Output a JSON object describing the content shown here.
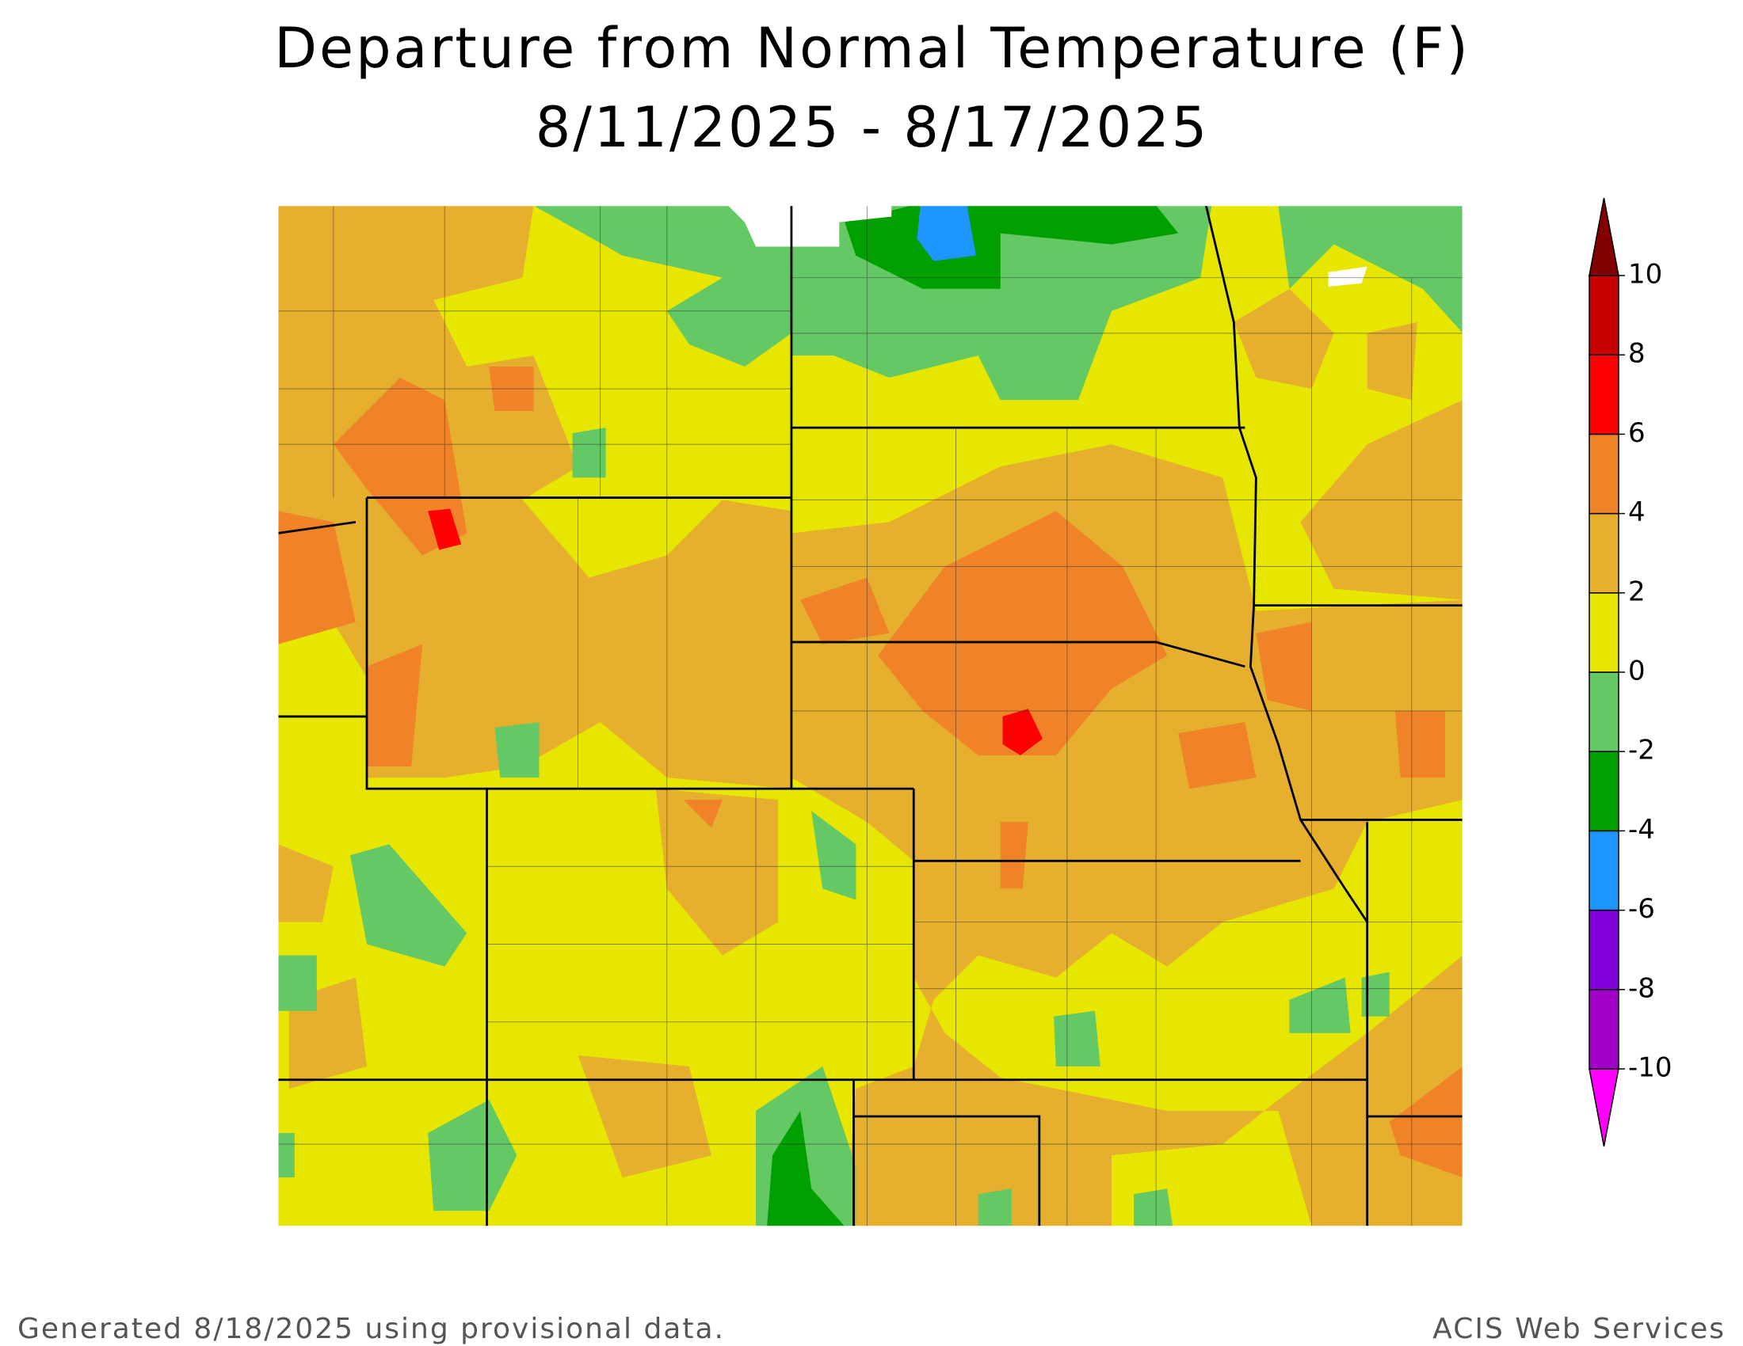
{
  "title": [
    "Departure from Normal Temperature (F)",
    "8/11/2025 - 8/17/2025"
  ],
  "colorbar": {
    "ticks": [
      -10,
      -8,
      -6,
      -4,
      -2,
      0,
      2,
      4,
      6,
      8,
      10
    ],
    "colors": [
      "#ff00ff",
      "#a000c8",
      "#8200dc",
      "#1e96ff",
      "#00a000",
      "#64c864",
      "#e6e600",
      "#e6af2d",
      "#f08228",
      "#ff0000",
      "#c80000",
      "#820000"
    ]
  },
  "footer": {
    "left": "Generated 8/18/2025 using provisional data.",
    "right": "ACIS Web Services"
  }
}
